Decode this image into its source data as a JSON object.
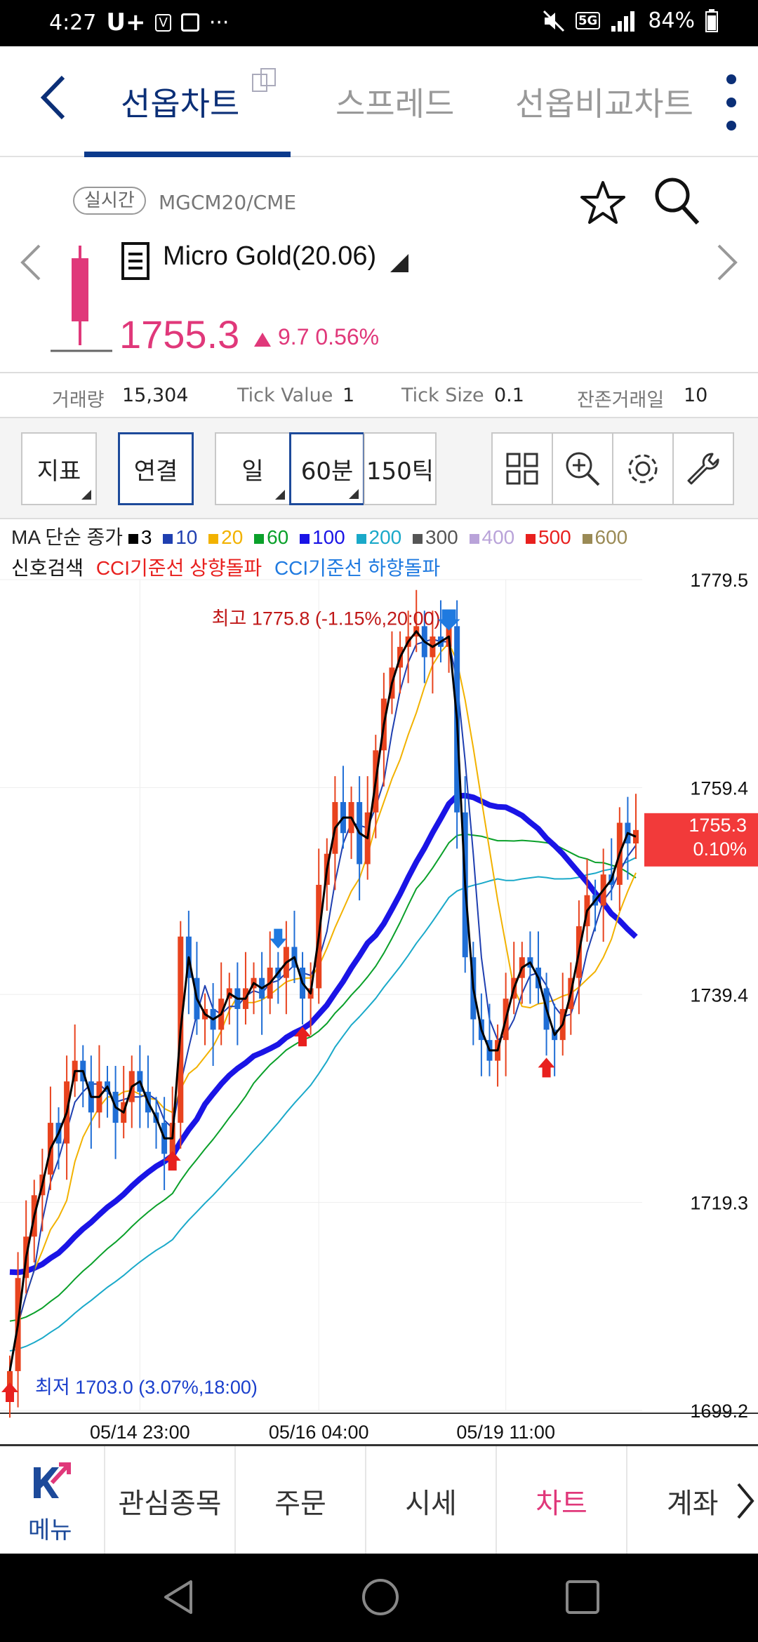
{
  "status": {
    "time": "4:27",
    "carrier": "U+",
    "volte": "V",
    "dots": "···",
    "network": "5G",
    "battery": "84%"
  },
  "tabs": [
    {
      "label": "선옵차트",
      "active": true
    },
    {
      "label": "스프레드",
      "active": false
    },
    {
      "label": "선옵비교차트",
      "active": false
    }
  ],
  "product": {
    "realtime_badge": "실시간",
    "symbol": "MGCM20/CME",
    "name": "Micro Gold(20.06)",
    "price": "1755.3",
    "change": "9.7",
    "change_pct": "0.56%"
  },
  "info": [
    {
      "label": "거래량",
      "value": "15,304"
    },
    {
      "label": "Tick Value",
      "value": "1"
    },
    {
      "label": "Tick Size",
      "value": "0.1"
    },
    {
      "label": "잔존거래일",
      "value": "10"
    }
  ],
  "toolbar": {
    "indicator": "지표",
    "link": "연결",
    "period_day": "일",
    "period_60": "60분",
    "period_150": "150틱"
  },
  "ma_legend": {
    "title": "MA 단순 종가",
    "items": [
      {
        "label": "3",
        "color": "#000000"
      },
      {
        "label": "10",
        "color": "#1f3fb0"
      },
      {
        "label": "20",
        "color": "#f2b200"
      },
      {
        "label": "60",
        "color": "#0aa02a"
      },
      {
        "label": "100",
        "color": "#1a14e6"
      },
      {
        "label": "200",
        "color": "#1aa9c9"
      },
      {
        "label": "300",
        "color": "#555555"
      },
      {
        "label": "400",
        "color": "#b9a3d9"
      },
      {
        "label": "500",
        "color": "#e8201e"
      },
      {
        "label": "600",
        "color": "#9a8a55"
      }
    ]
  },
  "signal_legend": {
    "title": "신호검색",
    "up": "CCI기준선 상향돌파",
    "down": "CCI기준선 하향돌파"
  },
  "chart_data": {
    "type": "candlestick",
    "y_ticks": [
      "1779.5",
      "1759.4",
      "1739.4",
      "1719.3",
      "1699.2"
    ],
    "ylim": [
      1699.2,
      1779.5
    ],
    "x_ticks": [
      "05/14 23:00",
      "05/16 04:00",
      "05/19 11:00"
    ],
    "high_annotation": "최고 1775.8 (-1.15%,20:00)",
    "low_annotation": "최저 1703.0 (3.07%,18:00)",
    "last_price": "1755.3",
    "last_pct": "0.10%",
    "closes": [
      1703.0,
      1712,
      1716,
      1720,
      1722,
      1727,
      1725,
      1731,
      1733,
      1731,
      1728,
      1731,
      1730,
      1727,
      1729,
      1732,
      1730,
      1728,
      1727,
      1724,
      1727,
      1745,
      1741,
      1737,
      1738,
      1736,
      1739,
      1740,
      1738,
      1740,
      1741,
      1739,
      1742,
      1741,
      1744,
      1742,
      1739,
      1740,
      1750,
      1753,
      1758,
      1755,
      1758,
      1752,
      1757,
      1763,
      1768,
      1771,
      1773,
      1774,
      1775,
      1772,
      1774,
      1773,
      1775,
      1757,
      1743,
      1737,
      1735,
      1733,
      1735,
      1739,
      1741,
      1743,
      1742,
      1740,
      1736,
      1735,
      1738,
      1741,
      1746,
      1749,
      1748,
      1751,
      1750,
      1756,
      1754,
      1755.3
    ]
  },
  "bottom_nav": {
    "menu": "메뉴",
    "items": [
      {
        "label": "관심종목",
        "active": false
      },
      {
        "label": "주문",
        "active": false
      },
      {
        "label": "시세",
        "active": false
      },
      {
        "label": "차트",
        "active": true
      },
      {
        "label": "계좌",
        "active": false
      }
    ]
  }
}
